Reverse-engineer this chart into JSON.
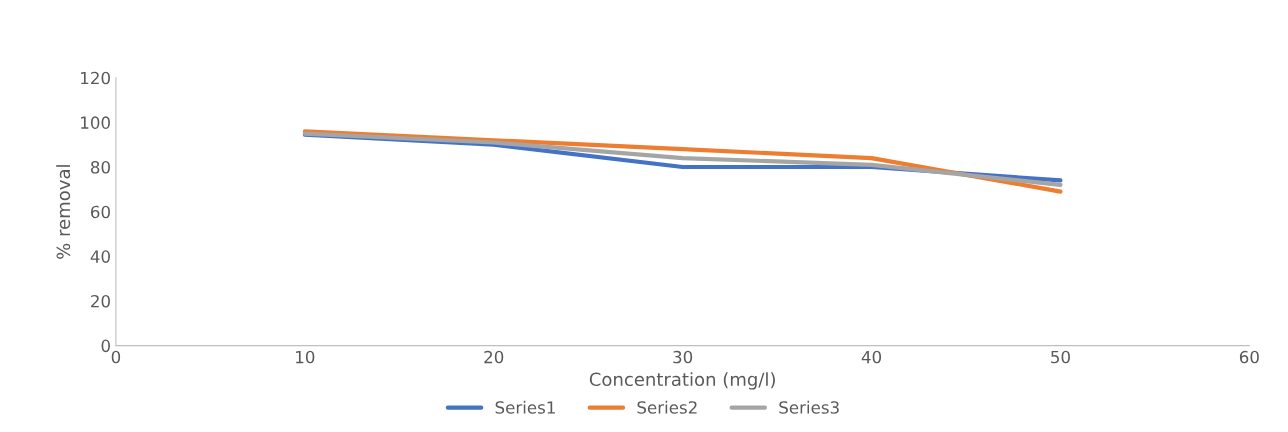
{
  "chart_data": {
    "type": "line",
    "xlabel": "Concentration (mg/l)",
    "ylabel": "% removal",
    "x": [
      10,
      20,
      30,
      40,
      50
    ],
    "series": [
      {
        "name": "Series1",
        "color": "#4472c4",
        "values": [
          94.5,
          90,
          80,
          80,
          74
        ]
      },
      {
        "name": "Series2",
        "color": "#ed7d31",
        "values": [
          96,
          92,
          88,
          84,
          69
        ]
      },
      {
        "name": "Series3",
        "color": "#a5a5a5",
        "values": [
          95,
          91,
          84,
          81,
          72
        ]
      }
    ],
    "xlim": [
      0,
      60
    ],
    "xticks": [
      0,
      10,
      20,
      30,
      40,
      50,
      60
    ],
    "ylim": [
      0,
      120
    ],
    "yticks": [
      0,
      20,
      40,
      60,
      80,
      100,
      120
    ],
    "grid": false,
    "legend": "bottom",
    "marker": "none",
    "line_style": "solid"
  }
}
